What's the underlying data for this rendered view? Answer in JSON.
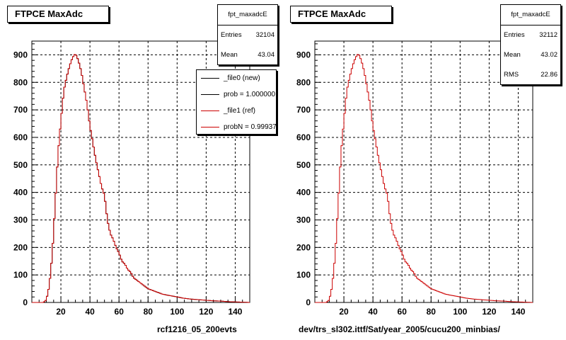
{
  "panels": [
    {
      "title": "FTPCE MaxAdc",
      "stats": {
        "name": "fpt_maxadcE",
        "rows": [
          {
            "label": "Entries",
            "value": "32104"
          },
          {
            "label": "Mean",
            "value": "43.04"
          }
        ]
      },
      "legend": [
        {
          "label": "_file0 (new)",
          "color": "#000000"
        },
        {
          "label": "prob = 1.000000",
          "color": "#000000"
        },
        {
          "label": "_file1 (ref)",
          "color": "#cc0000"
        },
        {
          "label": "probN = 0.99937",
          "color": "#cc0000"
        }
      ],
      "footer": "rcf1216_05_200evts"
    },
    {
      "title": "FTPCE MaxAdc",
      "stats": {
        "name": "fpt_maxadcE",
        "rows": [
          {
            "label": "Entries",
            "value": "32112"
          },
          {
            "label": "Mean",
            "value": "43.02"
          },
          {
            "label": "RMS",
            "value": "22.86"
          }
        ]
      },
      "footer": "dev/trs_sl302.ittf/Sat/year_2005/cucu200_minbias/"
    }
  ],
  "chart_data": [
    {
      "type": "line",
      "style": "step histogram",
      "title": "FTPCE MaxAdc",
      "xlim": [
        0,
        150
      ],
      "ylim": [
        0,
        950
      ],
      "xticks": [
        20,
        40,
        60,
        80,
        100,
        120,
        140
      ],
      "yticks": [
        0,
        100,
        200,
        300,
        400,
        500,
        600,
        700,
        800,
        900
      ],
      "grid": true,
      "bin_width": 1,
      "series": [
        {
          "name": "_file0 (new)",
          "color": "#000000",
          "x": [
            8,
            10,
            12,
            14,
            16,
            18,
            20,
            22,
            24,
            26,
            28,
            30,
            32,
            34,
            36,
            38,
            40,
            42,
            44,
            46,
            48,
            50,
            52,
            54,
            56,
            58,
            60,
            62,
            64,
            66,
            68,
            70,
            75,
            80,
            85,
            90,
            95,
            100,
            105,
            110,
            115,
            120,
            125,
            130,
            135,
            140,
            145,
            150
          ],
          "y": [
            0,
            10,
            60,
            170,
            350,
            540,
            660,
            770,
            820,
            860,
            890,
            905,
            880,
            840,
            780,
            720,
            640,
            580,
            520,
            470,
            420,
            390,
            300,
            250,
            230,
            200,
            180,
            150,
            140,
            120,
            110,
            90,
            70,
            50,
            40,
            30,
            25,
            20,
            15,
            12,
            10,
            8,
            6,
            5,
            3,
            2,
            1,
            0
          ]
        },
        {
          "name": "_file1 (ref)",
          "color": "#cc0000",
          "x": [
            8,
            10,
            12,
            14,
            16,
            18,
            20,
            22,
            24,
            26,
            28,
            30,
            32,
            34,
            36,
            38,
            40,
            42,
            44,
            46,
            48,
            50,
            52,
            54,
            56,
            58,
            60,
            62,
            64,
            66,
            68,
            70,
            75,
            80,
            85,
            90,
            95,
            100,
            105,
            110,
            115,
            120,
            125,
            130,
            135,
            140,
            145,
            150
          ],
          "y": [
            0,
            10,
            60,
            170,
            350,
            540,
            660,
            770,
            820,
            860,
            890,
            905,
            880,
            840,
            780,
            720,
            640,
            580,
            520,
            470,
            420,
            390,
            300,
            250,
            230,
            200,
            180,
            150,
            140,
            120,
            110,
            90,
            70,
            50,
            40,
            30,
            25,
            20,
            15,
            12,
            10,
            8,
            6,
            5,
            3,
            2,
            1,
            0
          ]
        }
      ]
    },
    {
      "type": "line",
      "style": "step histogram",
      "title": "FTPCE MaxAdc",
      "xlim": [
        0,
        150
      ],
      "ylim": [
        0,
        950
      ],
      "xticks": [
        20,
        40,
        60,
        80,
        100,
        120,
        140
      ],
      "yticks": [
        0,
        100,
        200,
        300,
        400,
        500,
        600,
        700,
        800,
        900
      ],
      "grid": true,
      "bin_width": 1,
      "series": [
        {
          "name": "",
          "color": "#cc0000",
          "x": [
            8,
            10,
            12,
            14,
            16,
            18,
            20,
            22,
            24,
            26,
            28,
            30,
            32,
            34,
            36,
            38,
            40,
            42,
            44,
            46,
            48,
            50,
            52,
            54,
            56,
            58,
            60,
            62,
            64,
            66,
            68,
            70,
            75,
            80,
            85,
            90,
            95,
            100,
            105,
            110,
            115,
            120,
            125,
            130,
            135,
            140,
            145,
            150
          ],
          "y": [
            0,
            10,
            60,
            170,
            350,
            540,
            660,
            770,
            820,
            860,
            890,
            905,
            880,
            840,
            780,
            720,
            640,
            580,
            520,
            470,
            420,
            390,
            300,
            250,
            230,
            200,
            180,
            150,
            140,
            120,
            110,
            90,
            70,
            50,
            40,
            30,
            25,
            20,
            15,
            12,
            10,
            8,
            6,
            5,
            3,
            2,
            1,
            0
          ]
        }
      ]
    }
  ]
}
